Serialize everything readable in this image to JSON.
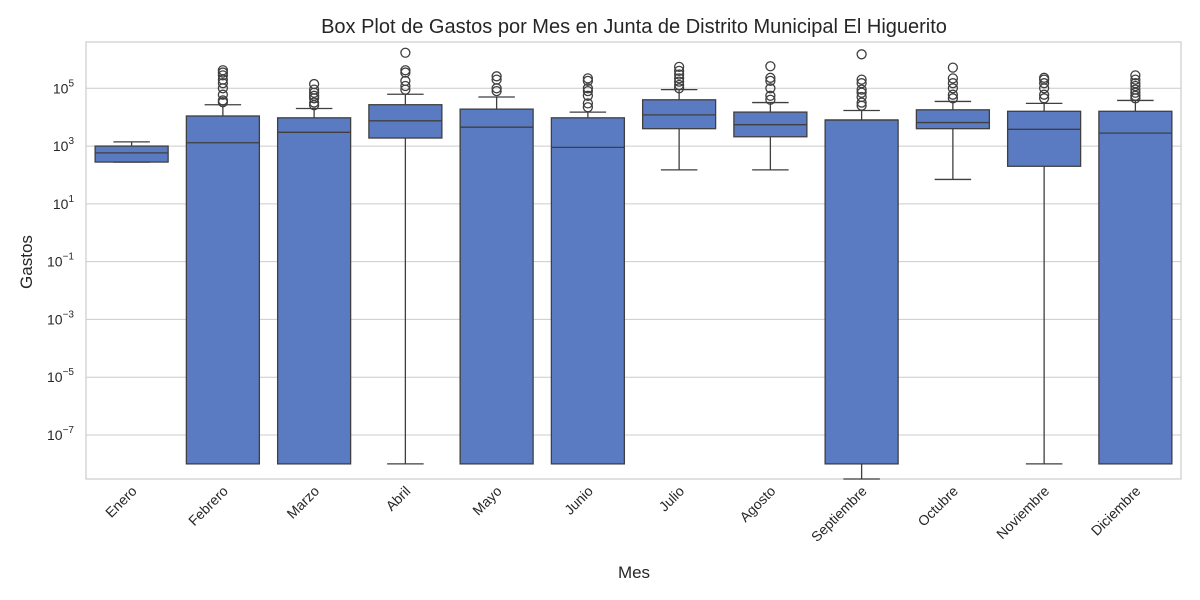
{
  "chart_data": {
    "type": "box",
    "title": "Box Plot de Gastos por Mes en Junta de Distrito Municipal El Higuerito",
    "xlabel": "Mes",
    "ylabel": "Gastos",
    "y_scale": "log",
    "ylim": [
      3e-09,
      4000000
    ],
    "y_ticks": [
      {
        "base": "10",
        "exp": "5",
        "value": 100000
      },
      {
        "base": "10",
        "exp": "3",
        "value": 1000
      },
      {
        "base": "10",
        "exp": "1",
        "value": 10
      },
      {
        "base": "10",
        "exp": "−1",
        "value": 0.1
      },
      {
        "base": "10",
        "exp": "−3",
        "value": 0.001
      },
      {
        "base": "10",
        "exp": "−5",
        "value": 1e-05
      },
      {
        "base": "10",
        "exp": "−7",
        "value": 1e-07
      }
    ],
    "grid": true,
    "box_color": "#5a7bc2",
    "categories": [
      "Enero",
      "Febrero",
      "Marzo",
      "Abril",
      "Mayo",
      "Junio",
      "Julio",
      "Agosto",
      "Septiembre",
      "Octubre",
      "Noviembre",
      "Diciembre"
    ],
    "boxes": [
      {
        "whisker_low": 280,
        "q1": 280,
        "median": 580,
        "q3": 1000,
        "whisker_high": 1400,
        "fliers": []
      },
      {
        "whisker_low": 1e-08,
        "q1": 1e-08,
        "median": 1300,
        "q3": 11000,
        "whisker_high": 27000,
        "fliers": [
          33000,
          38000,
          60000,
          100000,
          150000,
          200000,
          280000,
          350000,
          420000
        ]
      },
      {
        "whisker_low": 1e-08,
        "q1": 1e-08,
        "median": 3000,
        "q3": 9500,
        "whisker_high": 20000,
        "fliers": [
          26000,
          32000,
          45000,
          55000,
          70000,
          90000,
          140000
        ]
      },
      {
        "whisker_low": 1e-08,
        "q1": 1900,
        "median": 7500,
        "q3": 27000,
        "whisker_high": 62000,
        "fliers": [
          90000,
          120000,
          180000,
          350000,
          420000,
          1700000
        ]
      },
      {
        "whisker_low": 1e-08,
        "q1": 1e-08,
        "median": 4500,
        "q3": 19000,
        "whisker_high": 50000,
        "fliers": [
          80000,
          100000,
          200000,
          260000
        ]
      },
      {
        "whisker_low": 1e-08,
        "q1": 1e-08,
        "median": 900,
        "q3": 9500,
        "whisker_high": 15000,
        "fliers": [
          22000,
          30000,
          55000,
          80000,
          100000,
          180000,
          220000
        ]
      },
      {
        "whisker_low": 150,
        "q1": 4000,
        "median": 12000,
        "q3": 40000,
        "whisker_high": 90000,
        "fliers": [
          100000,
          130000,
          170000,
          220000,
          300000,
          400000,
          550000
        ]
      },
      {
        "whisker_low": 150,
        "q1": 2100,
        "median": 5500,
        "q3": 15000,
        "whisker_high": 32000,
        "fliers": [
          40000,
          55000,
          100000,
          180000,
          230000,
          580000
        ]
      },
      {
        "whisker_low": 3e-09,
        "q1": 1e-08,
        "median": 8000,
        "q3": 8000,
        "whisker_high": 17000,
        "fliers": [
          25000,
          32000,
          50000,
          70000,
          90000,
          150000,
          200000,
          1500000
        ]
      },
      {
        "whisker_low": 70,
        "q1": 4000,
        "median": 6500,
        "q3": 18000,
        "whisker_high": 35000,
        "fliers": [
          45000,
          60000,
          100000,
          150000,
          220000,
          520000
        ]
      },
      {
        "whisker_low": 1e-08,
        "q1": 200,
        "median": 3800,
        "q3": 16000,
        "whisker_high": 30000,
        "fliers": [
          45000,
          60000,
          100000,
          150000,
          200000,
          230000
        ]
      },
      {
        "whisker_low": 1e-08,
        "q1": 1e-08,
        "median": 2800,
        "q3": 16000,
        "whisker_high": 38000,
        "fliers": [
          45000,
          55000,
          70000,
          90000,
          120000,
          150000,
          200000,
          280000
        ]
      }
    ]
  }
}
